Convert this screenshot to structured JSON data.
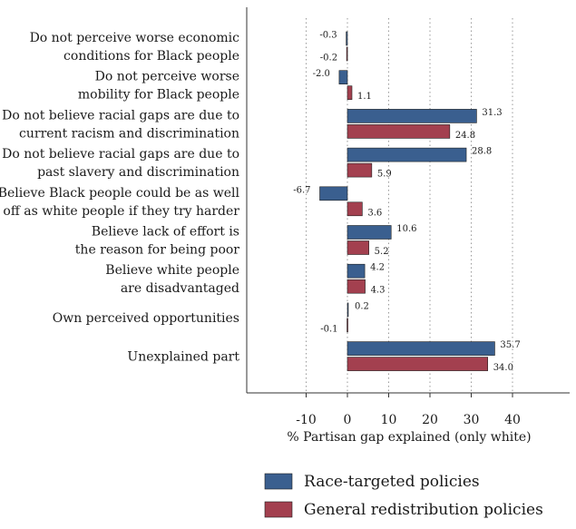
{
  "chart_data": {
    "type": "bar",
    "orientation": "horizontal",
    "categories": [
      "Do not perceive worse economic\nconditions for Black people",
      "Do not perceive worse\nmobility for Black people",
      "Do not believe racial gaps are due to\ncurrent racism and discrimination",
      "Do not believe racial gaps are due to\npast slavery and discrimination",
      "Believe Black people could be as well\noff as white people if they try harder",
      "Believe lack of effort is\nthe reason for being poor",
      "Believe white people\nare disadvantaged",
      "Own perceived opportunities",
      "Unexplained part"
    ],
    "series": [
      {
        "name": "Race-targeted policies",
        "color": "#3a5f8f",
        "values": [
          -0.3,
          -2.0,
          31.3,
          28.8,
          -6.7,
          10.6,
          4.2,
          0.2,
          35.7
        ],
        "labels": [
          "-0.3",
          "-2.0",
          "31.3",
          "28.8",
          "-6.7",
          "10.6",
          "4.2",
          "0.2",
          "35.7"
        ]
      },
      {
        "name": "General redistribution policies",
        "color": "#a3404f",
        "values": [
          -0.2,
          1.1,
          24.8,
          5.9,
          3.6,
          5.2,
          4.3,
          -0.1,
          34.0
        ],
        "labels": [
          "-0.2",
          "1.1",
          "24.8",
          "5.9",
          "3.6",
          "5.2",
          "4.3",
          "-0.1",
          "34.0"
        ]
      }
    ],
    "xlabel": "% Partisan gap explained (only white)",
    "xticks": [
      -10,
      0,
      10,
      20,
      30,
      40
    ],
    "xtick_labels": [
      "-10",
      "0",
      "10",
      "20",
      "30",
      "40"
    ],
    "xlim": [
      -24,
      54
    ],
    "grid": "vertical dotted",
    "legend_position": "bottom"
  }
}
